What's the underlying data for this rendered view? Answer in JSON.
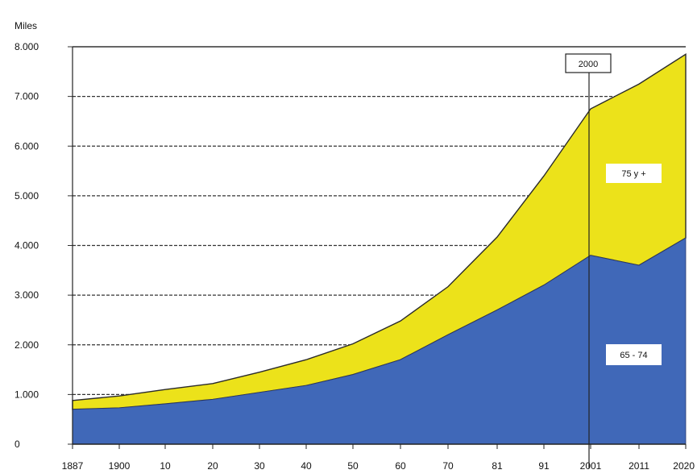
{
  "chart_data": {
    "type": "area",
    "stacked": true,
    "ylabel": "Miles",
    "ylim": [
      0,
      8000
    ],
    "grid": true,
    "x": [
      1887,
      1900,
      1910,
      1920,
      1930,
      1940,
      1950,
      1960,
      1970,
      1981,
      1991,
      2001,
      2011,
      2020
    ],
    "x_tick_labels": [
      "1887",
      "1900",
      "10",
      "20",
      "30",
      "40",
      "50",
      "60",
      "70",
      "81",
      "91",
      "2001",
      "2011",
      "2020"
    ],
    "y_ticks": [
      0,
      1000,
      2000,
      3000,
      4000,
      5000,
      6000,
      7000,
      8000
    ],
    "y_tick_labels": [
      "0",
      "1.000",
      "2.000",
      "3.000",
      "4.000",
      "5.000",
      "6.000",
      "7.000",
      "8.000"
    ],
    "series": [
      {
        "name": "65 - 74",
        "color": "#4068b8",
        "values": [
          700,
          730,
          810,
          900,
          1040,
          1180,
          1400,
          1700,
          2200,
          2700,
          3200,
          3800,
          3600,
          4150
        ]
      },
      {
        "name": "75 y +",
        "color": "#ece21a",
        "values": [
          180,
          240,
          290,
          320,
          410,
          520,
          620,
          780,
          970,
          1470,
          2200,
          2950,
          3650,
          3700
        ]
      }
    ],
    "annotations": [
      {
        "text": "2000",
        "x": 2000,
        "type": "vertical-line"
      }
    ]
  }
}
